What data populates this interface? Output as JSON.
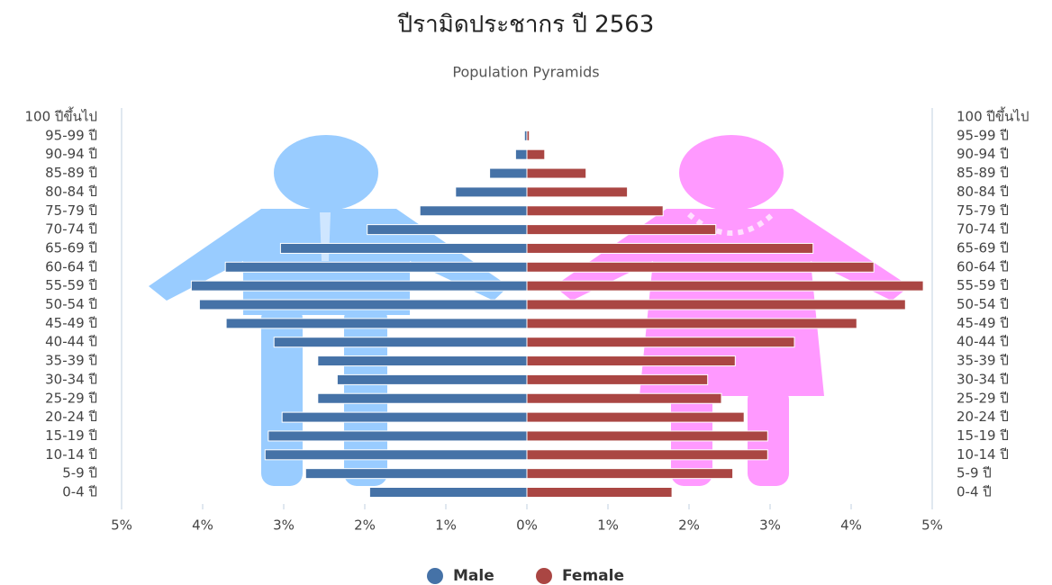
{
  "chart_data": {
    "type": "pyramid",
    "title": "ปีรามิดประชากร ปี 2563",
    "subtitle": "Population Pyramids",
    "categories": [
      "100 ปีขึ้นไป",
      "95-99 ปี",
      "90-94 ปี",
      "85-89 ปี",
      "80-84 ปี",
      "75-79 ปี",
      "70-74 ปี",
      "65-69 ปี",
      "60-64 ปี",
      "55-59 ปี",
      "50-54 ปี",
      "45-49 ปี",
      "40-44 ปี",
      "35-39 ปี",
      "30-34 ปี",
      "25-29 ปี",
      "20-24 ปี",
      "15-19 ปี",
      "10-14 ปี",
      "5-9 ปี",
      "0-4 ปี"
    ],
    "series": [
      {
        "name": "Male",
        "color": "#4572a7",
        "values": [
          -0.01,
          -0.03,
          -0.14,
          -0.46,
          -0.88,
          -1.32,
          -1.97,
          -3.04,
          -3.72,
          -4.14,
          -4.04,
          -3.71,
          -3.12,
          -2.58,
          -2.34,
          -2.58,
          -3.02,
          -3.19,
          -3.23,
          -2.73,
          -1.94
        ]
      },
      {
        "name": "Female",
        "color": "#aa4643",
        "values": [
          0.01,
          0.03,
          0.22,
          0.73,
          1.24,
          1.68,
          2.33,
          3.53,
          4.28,
          4.89,
          4.67,
          4.07,
          3.3,
          2.57,
          2.23,
          2.4,
          2.68,
          2.97,
          2.97,
          2.54,
          1.79
        ]
      }
    ],
    "xlim": [
      -5,
      5
    ],
    "xticks": [
      {
        "value": -5,
        "label": "5%"
      },
      {
        "value": -4,
        "label": "4%"
      },
      {
        "value": -3,
        "label": "3%"
      },
      {
        "value": -2,
        "label": "2%"
      },
      {
        "value": -1,
        "label": "1%"
      },
      {
        "value": 0,
        "label": "0%"
      },
      {
        "value": 1,
        "label": "1%"
      },
      {
        "value": 2,
        "label": "2%"
      },
      {
        "value": 3,
        "label": "3%"
      },
      {
        "value": 4,
        "label": "4%"
      },
      {
        "value": 5,
        "label": "5%"
      }
    ]
  }
}
